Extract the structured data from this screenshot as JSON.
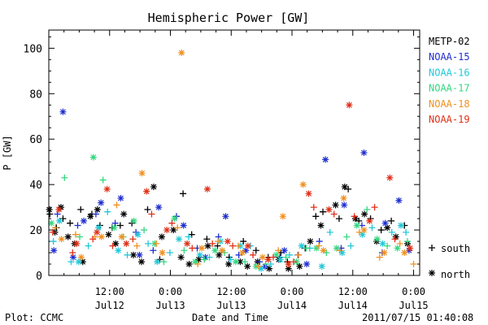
{
  "chart_data": {
    "type": "scatter",
    "title": "Hemispheric Power [GW]",
    "ylabel": "P [GW]",
    "xlabel": "Date and Time",
    "ylim": [
      0,
      108
    ],
    "xlim_hours": [
      0,
      63
    ],
    "y_ticks": [
      "0",
      "20",
      "40",
      "60",
      "80",
      "100"
    ],
    "x_ticks": [
      {
        "time": "12:00",
        "date": "Jul12",
        "hour": 12
      },
      {
        "time": "0:00",
        "date": "Jul13",
        "hour": 24
      },
      {
        "time": "12:00",
        "date": "Jul13",
        "hour": 36
      },
      {
        "time": "0:00",
        "date": "Jul14",
        "hour": 48
      },
      {
        "time": "12:00",
        "date": "Jul14",
        "hour": 60
      },
      {
        "time": "0:00",
        "date": "Jul15",
        "hour": 72
      }
    ],
    "series": [
      {
        "name": "METP-02",
        "color": "#000000",
        "south": [
          [
            0.2,
            27
          ],
          [
            1.5,
            21
          ],
          [
            2.8,
            25
          ],
          [
            4.2,
            23
          ],
          [
            6.3,
            29
          ],
          [
            8.5,
            27
          ],
          [
            10.1,
            22
          ],
          [
            12.5,
            21
          ],
          [
            14.1,
            22
          ],
          [
            16.4,
            23
          ],
          [
            19.5,
            29
          ],
          [
            21.9,
            7
          ],
          [
            26.5,
            36
          ],
          [
            28.2,
            18
          ],
          [
            31.2,
            16
          ],
          [
            33.3,
            13
          ],
          [
            35.6,
            8
          ],
          [
            38.4,
            15
          ],
          [
            40.9,
            11
          ],
          [
            43.3,
            8
          ],
          [
            45.8,
            10
          ],
          [
            47.1,
            6
          ],
          [
            49.2,
            9
          ],
          [
            50.6,
            12
          ],
          [
            52.7,
            26
          ],
          [
            54.1,
            28
          ],
          [
            57.3,
            25
          ],
          [
            59.1,
            38
          ],
          [
            61.2,
            24
          ],
          [
            63.5,
            25
          ],
          [
            65.6,
            20
          ],
          [
            67.6,
            24
          ],
          [
            70.2,
            22
          ]
        ],
        "north": [
          [
            0.1,
            29
          ],
          [
            1.2,
            19
          ],
          [
            2.4,
            30
          ],
          [
            3.8,
            17
          ],
          [
            5.1,
            14
          ],
          [
            6.7,
            6
          ],
          [
            8.2,
            26
          ],
          [
            9.6,
            29
          ],
          [
            11.8,
            18
          ],
          [
            13.2,
            14
          ],
          [
            14.8,
            27
          ],
          [
            16.7,
            9
          ],
          [
            18.3,
            6
          ],
          [
            20.7,
            39
          ],
          [
            22.3,
            17
          ],
          [
            24.6,
            20
          ],
          [
            26.1,
            8
          ],
          [
            27.7,
            5
          ],
          [
            29.6,
            7
          ],
          [
            31.4,
            13
          ],
          [
            33.6,
            9
          ],
          [
            35.5,
            5
          ],
          [
            37.8,
            6
          ],
          [
            39.2,
            4
          ],
          [
            41.2,
            6
          ],
          [
            43.5,
            3
          ],
          [
            45.4,
            7
          ],
          [
            47.3,
            3
          ],
          [
            49.5,
            4
          ],
          [
            51.6,
            15
          ],
          [
            53.7,
            22
          ],
          [
            56.6,
            31
          ],
          [
            58.4,
            39
          ],
          [
            60.5,
            25
          ],
          [
            62.3,
            27
          ],
          [
            64.7,
            15
          ],
          [
            66.8,
            21
          ],
          [
            68.5,
            17
          ],
          [
            70.8,
            14
          ]
        ]
      },
      {
        "name": "NOAA-15",
        "color": "#1f2fd0",
        "south": [
          [
            1.7,
            27
          ],
          [
            5.7,
            22
          ],
          [
            9.3,
            27
          ],
          [
            13.1,
            23
          ],
          [
            17.2,
            19
          ],
          [
            20.6,
            11
          ],
          [
            25.2,
            26
          ],
          [
            29.3,
            12
          ],
          [
            33.5,
            17
          ],
          [
            37.5,
            9
          ],
          [
            41.6,
            6
          ],
          [
            45.6,
            8
          ],
          [
            49.2,
            9
          ],
          [
            53.4,
            15
          ],
          [
            57.7,
            12
          ],
          [
            61.8,
            22
          ],
          [
            65.8,
            10
          ]
        ],
        "north": [
          [
            2.8,
            72
          ],
          [
            1.0,
            11
          ],
          [
            4.8,
            8
          ],
          [
            6.9,
            24
          ],
          [
            10.3,
            32
          ],
          [
            14.2,
            34
          ],
          [
            17.9,
            9
          ],
          [
            21.7,
            30
          ],
          [
            26.6,
            22
          ],
          [
            30.9,
            8
          ],
          [
            34.9,
            26
          ],
          [
            38.9,
            11
          ],
          [
            42.7,
            4
          ],
          [
            46.5,
            11
          ],
          [
            50.9,
            5
          ],
          [
            54.6,
            51
          ],
          [
            58.3,
            31
          ],
          [
            62.2,
            54
          ],
          [
            66.4,
            23
          ],
          [
            69.1,
            33
          ],
          [
            71.1,
            11
          ]
        ]
      },
      {
        "name": "NOAA-16",
        "color": "#22c8d8",
        "south": [
          [
            0.9,
            15
          ],
          [
            4.4,
            6
          ],
          [
            7.8,
            13
          ],
          [
            11.6,
            28
          ],
          [
            15.5,
            9
          ],
          [
            19.6,
            14
          ],
          [
            23.9,
            10
          ],
          [
            27.6,
            17
          ],
          [
            31.7,
            8
          ],
          [
            35.9,
            7
          ],
          [
            39.8,
            13
          ],
          [
            43.8,
            5
          ],
          [
            47.5,
            9
          ],
          [
            51.5,
            12
          ],
          [
            55.5,
            19
          ],
          [
            59.6,
            13
          ],
          [
            63.8,
            21
          ],
          [
            67.7,
            19
          ],
          [
            70.5,
            19
          ]
        ],
        "north": [
          [
            2.1,
            24
          ],
          [
            5.9,
            6
          ],
          [
            9.8,
            21
          ],
          [
            13.7,
            11
          ],
          [
            17.6,
            18
          ],
          [
            21.4,
            6
          ],
          [
            25.7,
            16
          ],
          [
            29.8,
            9
          ],
          [
            33.9,
            15
          ],
          [
            37.8,
            13
          ],
          [
            41.9,
            3
          ],
          [
            45.7,
            7
          ],
          [
            49.9,
            13
          ],
          [
            53.9,
            4
          ],
          [
            57.9,
            10
          ],
          [
            61.9,
            18
          ],
          [
            65.9,
            14
          ],
          [
            69.5,
            22
          ]
        ]
      },
      {
        "name": "NOAA-17",
        "color": "#35d880",
        "south": [
          [
            3.1,
            43
          ],
          [
            6.1,
            17
          ],
          [
            10.7,
            42
          ],
          [
            14.7,
            17
          ],
          [
            18.8,
            20
          ],
          [
            22.7,
            6
          ],
          [
            26.7,
            11
          ],
          [
            30.7,
            7
          ],
          [
            34.7,
            10
          ],
          [
            38.7,
            6
          ],
          [
            42.8,
            5
          ],
          [
            46.8,
            8
          ],
          [
            50.8,
            12
          ],
          [
            54.8,
            10
          ],
          [
            58.8,
            17
          ],
          [
            62.8,
            29
          ],
          [
            66.8,
            13
          ],
          [
            70.8,
            15
          ]
        ],
        "north": [
          [
            0.5,
            23
          ],
          [
            8.8,
            52
          ],
          [
            12.9,
            21
          ],
          [
            16.8,
            24
          ],
          [
            20.9,
            14
          ],
          [
            24.8,
            25
          ],
          [
            28.9,
            6
          ],
          [
            32.8,
            11
          ],
          [
            36.9,
            6
          ],
          [
            40.9,
            4
          ],
          [
            44.9,
            9
          ],
          [
            48.9,
            6
          ],
          [
            52.8,
            12
          ],
          [
            56.8,
            12
          ],
          [
            60.8,
            22
          ],
          [
            64.8,
            16
          ],
          [
            68.8,
            12
          ]
        ]
      },
      {
        "name": "NOAA-18",
        "color": "#f09020",
        "south": [
          [
            1.3,
            21
          ],
          [
            5.3,
            18
          ],
          [
            9.1,
            17
          ],
          [
            13.4,
            31
          ],
          [
            17.4,
            13
          ],
          [
            21.2,
            14
          ],
          [
            25.4,
            21
          ],
          [
            29.4,
            5
          ],
          [
            33.4,
            15
          ],
          [
            37.4,
            13
          ],
          [
            41.4,
            4
          ],
          [
            45.3,
            11
          ],
          [
            49.3,
            9
          ],
          [
            53.3,
            13
          ],
          [
            57.4,
            11
          ],
          [
            61.3,
            19
          ],
          [
            65.3,
            8
          ],
          [
            69.3,
            14
          ],
          [
            72.0,
            5
          ]
        ],
        "north": [
          [
            2.5,
            16
          ],
          [
            6.4,
            8
          ],
          [
            10.4,
            17
          ],
          [
            14.4,
            17
          ],
          [
            18.4,
            45
          ],
          [
            22.4,
            10
          ],
          [
            26.2,
            98
          ],
          [
            30.2,
            12
          ],
          [
            34.2,
            11
          ],
          [
            38.2,
            10
          ],
          [
            42.2,
            8
          ],
          [
            46.2,
            26
          ],
          [
            50.2,
            40
          ],
          [
            54.2,
            11
          ],
          [
            58.2,
            34
          ],
          [
            62.2,
            20
          ],
          [
            66.2,
            10
          ],
          [
            70.2,
            10
          ]
        ]
      },
      {
        "name": "NOAA-19",
        "color": "#e03018",
        "south": [
          [
            0.8,
            19
          ],
          [
            4.7,
            10
          ],
          [
            8.7,
            16
          ],
          [
            12.6,
            13
          ],
          [
            16.6,
            16
          ],
          [
            20.3,
            27
          ],
          [
            24.3,
            23
          ],
          [
            28.3,
            12
          ],
          [
            32.3,
            14
          ],
          [
            36.3,
            13
          ],
          [
            40.3,
            9
          ],
          [
            44.3,
            8
          ],
          [
            48.3,
            6
          ],
          [
            52.3,
            30
          ],
          [
            56.3,
            27
          ],
          [
            60.3,
            26
          ],
          [
            64.3,
            30
          ],
          [
            68.3,
            16
          ]
        ],
        "north": [
          [
            2.0,
            29
          ],
          [
            5.5,
            14
          ],
          [
            9.5,
            19
          ],
          [
            11.5,
            38
          ],
          [
            15.3,
            14
          ],
          [
            19.3,
            37
          ],
          [
            23.3,
            20
          ],
          [
            27.3,
            14
          ],
          [
            31.3,
            38
          ],
          [
            35.3,
            15
          ],
          [
            39.3,
            13
          ],
          [
            43.3,
            7
          ],
          [
            47.3,
            5
          ],
          [
            51.3,
            36
          ],
          [
            55.3,
            29
          ],
          [
            59.3,
            75
          ],
          [
            63.3,
            24
          ],
          [
            67.3,
            43
          ],
          [
            71.3,
            12
          ]
        ]
      }
    ],
    "marker_legend": [
      {
        "symbol": "+",
        "label": "south"
      },
      {
        "symbol": "*",
        "label": "north"
      }
    ]
  },
  "footer": {
    "plot_credit": "Plot: CCMC",
    "timestamp": "2011/07/15 01:40:08"
  }
}
